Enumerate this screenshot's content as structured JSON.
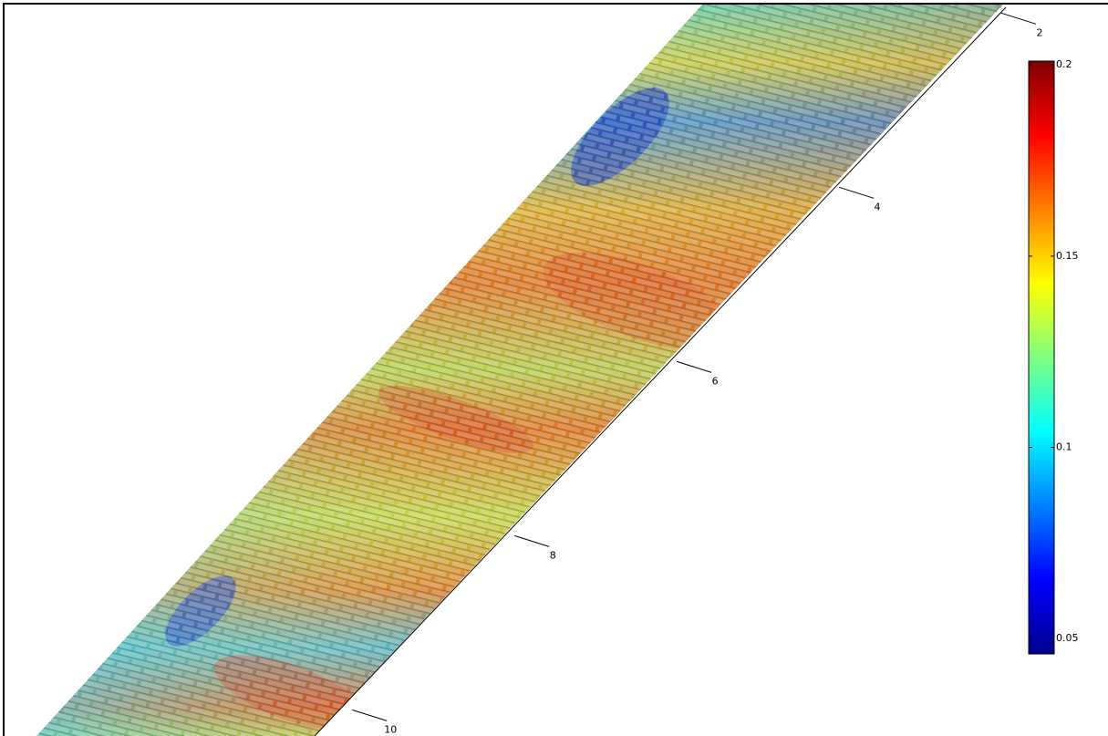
{
  "chart_data": {
    "type": "surface",
    "axis": {
      "lim": [
        1.85,
        10.3
      ],
      "ticks": [
        2,
        4,
        6,
        8,
        10
      ]
    },
    "colorbar": {
      "colormap": "jet",
      "clim": [
        0.046,
        0.201
      ],
      "ticks": [
        0.05,
        0.1,
        0.15,
        0.2
      ]
    }
  }
}
